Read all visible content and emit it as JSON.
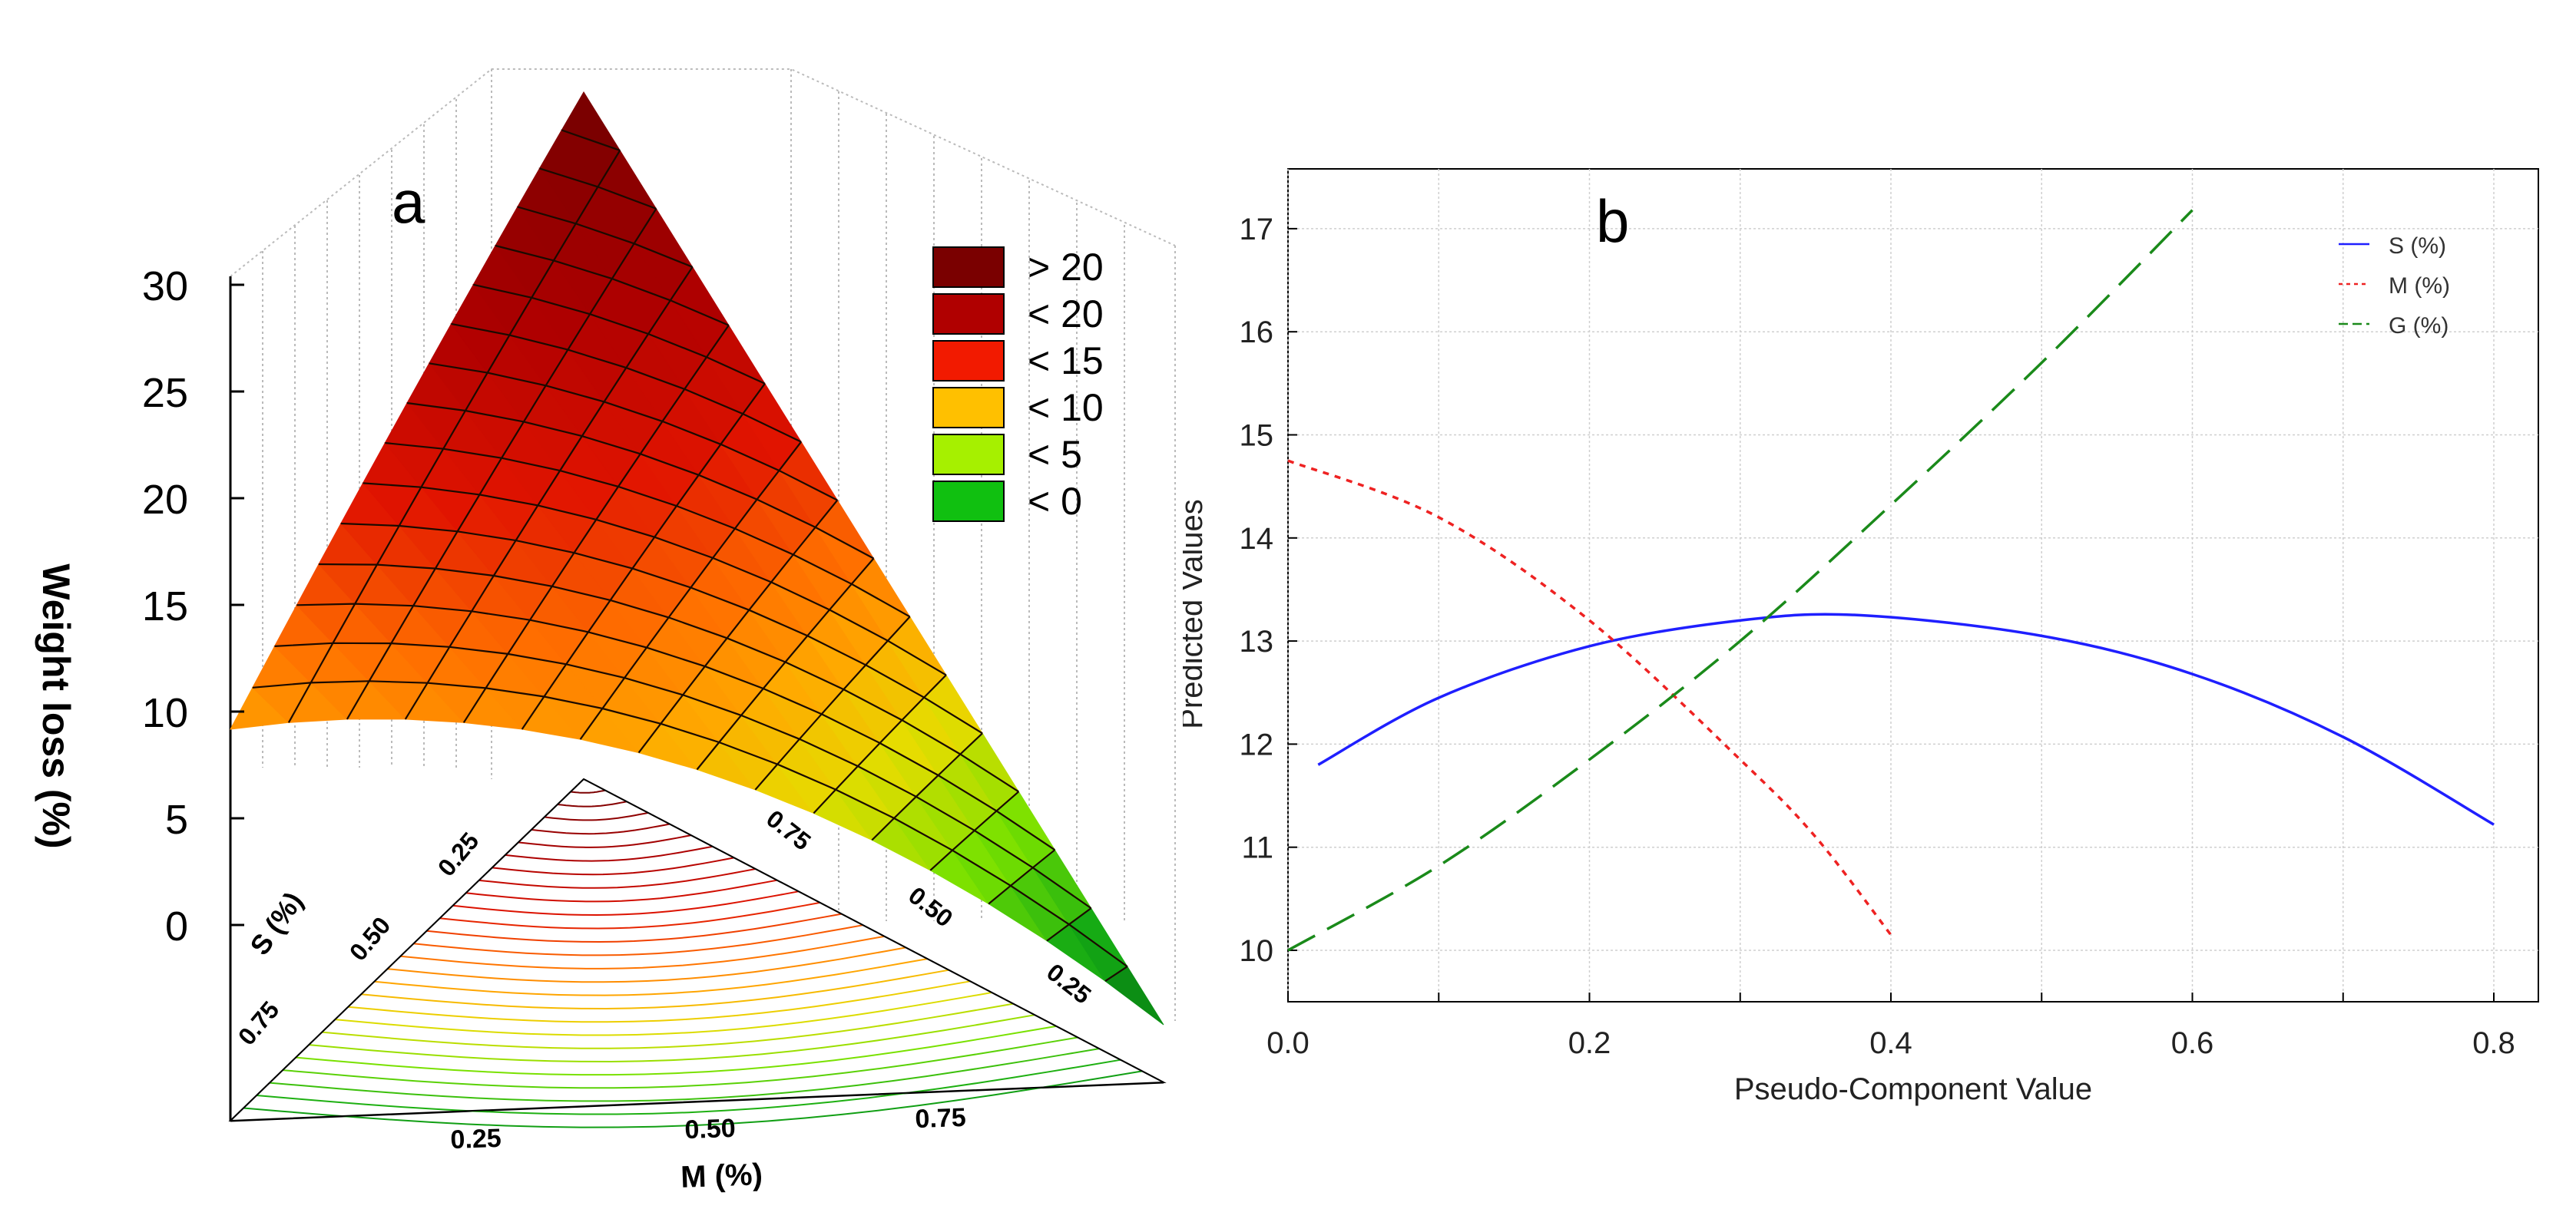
{
  "chart_data": [
    {
      "type": "surface3d",
      "panel_label": "a",
      "zlabel": "Weight loss (%)",
      "zticks": [
        "0",
        "5",
        "10",
        "15",
        "20",
        "25",
        "30"
      ],
      "zlim": [
        0,
        30
      ],
      "xlabel": "M (%)",
      "xticks": [
        "0.25",
        "0.50",
        "0.75"
      ],
      "ylabel": "S (%)",
      "yticks": [
        "0.25",
        "0.50",
        "0.75"
      ],
      "edge_ticks": [
        "0.75",
        "0.50",
        "0.25"
      ],
      "vertex_values": {
        "apex": 29.5,
        "left": 10.5,
        "right": -4.5
      },
      "legend": [
        {
          "label": "> 20",
          "color": "#7a0000"
        },
        {
          "label": "< 20",
          "color": "#b00000"
        },
        {
          "label": "< 15",
          "color": "#f21a00"
        },
        {
          "label": "< 10",
          "color": "#ffc000"
        },
        {
          "label": "< 5",
          "color": "#a6f000"
        },
        {
          "label": "< 0",
          "color": "#10c010"
        }
      ]
    },
    {
      "type": "line",
      "panel_label": "b",
      "xlabel": "Pseudo-Component Value",
      "ylabel": "Predicted Values",
      "xlim": [
        0,
        0.82
      ],
      "ylim": [
        9.5,
        17.3
      ],
      "xticks": [
        "0.0",
        "0.2",
        "0.4",
        "0.6",
        "0.8"
      ],
      "yticks": [
        "10",
        "11",
        "12",
        "13",
        "14",
        "15",
        "16",
        "17"
      ],
      "grid": true,
      "legend_position": "top-right",
      "series": [
        {
          "name": "S (%)",
          "color": "#1f1fff",
          "dash": "solid",
          "x": [
            0.02,
            0.1,
            0.2,
            0.3,
            0.38,
            0.5,
            0.6,
            0.7,
            0.8
          ],
          "y": [
            11.8,
            12.45,
            12.95,
            13.2,
            13.25,
            13.05,
            12.68,
            12.07,
            11.22
          ]
        },
        {
          "name": "M (%)",
          "color": "#ee2222",
          "dash": "dotted",
          "x": [
            0.0,
            0.1,
            0.2,
            0.3,
            0.35,
            0.4
          ],
          "y": [
            14.75,
            14.2,
            13.2,
            11.85,
            11.1,
            10.15
          ]
        },
        {
          "name": "G (%)",
          "color": "#1a8a1a",
          "dash": "dashed",
          "x": [
            0.0,
            0.1,
            0.2,
            0.3,
            0.4,
            0.5,
            0.6
          ],
          "y": [
            10.0,
            10.82,
            11.85,
            13.0,
            14.32,
            15.7,
            17.18
          ]
        }
      ]
    }
  ]
}
